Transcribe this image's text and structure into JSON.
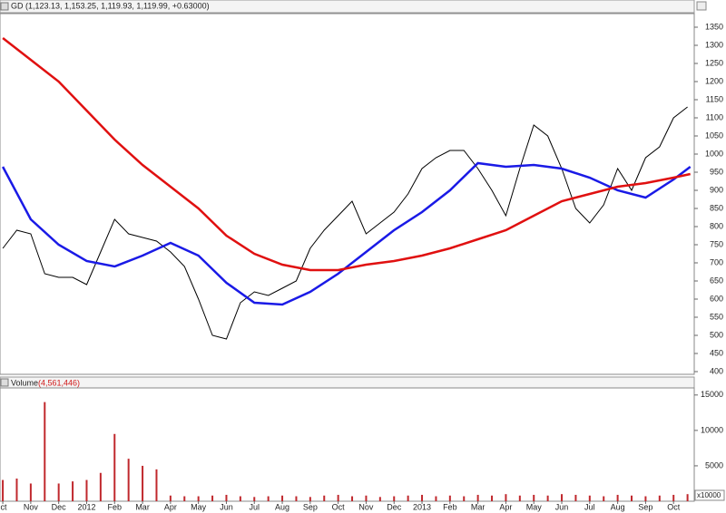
{
  "chart_data": [
    {
      "type": "line",
      "title": "GD (1,123.13, 1,153.25, 1,119.93, 1,119.99, +0.63000)",
      "xlim": [
        -0.1,
        24.74
      ],
      "ylim": [
        392.5,
        1387.5
      ],
      "yticks": [
        400,
        450,
        500,
        550,
        600,
        650,
        700,
        750,
        800,
        850,
        900,
        950,
        1000,
        1050,
        1100,
        1150,
        1200,
        1250,
        1300,
        1350
      ],
      "series": [
        {
          "color": "#000000",
          "x": [
            0,
            0.5,
            1,
            1.5,
            2,
            2.5,
            3,
            3.5,
            4,
            4.5,
            5,
            5.5,
            6,
            6.5,
            7,
            7.5,
            8,
            8.5,
            9,
            9.5,
            10,
            10.5,
            11,
            11.5,
            12,
            12.5,
            13,
            13.5,
            14,
            14.5,
            15,
            15.5,
            16,
            16.5,
            17,
            17.5,
            18,
            18.5,
            19,
            19.5,
            20,
            20.5,
            21,
            21.5,
            22,
            22.5,
            23,
            23.5,
            24,
            24.5
          ],
          "values": [
            740,
            790,
            780,
            670,
            660,
            660,
            640,
            730,
            820,
            780,
            770,
            760,
            730,
            690,
            600,
            500,
            490,
            590,
            620,
            610,
            630,
            650,
            740,
            790,
            830,
            870,
            780,
            810,
            840,
            890,
            960,
            990,
            1010,
            1010,
            960,
            900,
            830,
            960,
            1080,
            1050,
            960,
            850,
            810,
            860,
            960,
            900,
            990,
            1020,
            1100,
            1130
          ]
        },
        {
          "color": "#1a1ae6",
          "x": [
            0,
            1,
            2,
            3,
            4,
            5,
            6,
            7,
            8,
            9,
            10,
            11,
            12,
            13,
            14,
            15,
            16,
            17,
            18,
            19,
            20,
            21,
            22,
            23,
            24,
            24.6
          ],
          "values": [
            965,
            820,
            750,
            705,
            690,
            720,
            755,
            720,
            645,
            590,
            585,
            620,
            670,
            730,
            790,
            840,
            900,
            975,
            965,
            970,
            960,
            935,
            900,
            880,
            930,
            965
          ]
        },
        {
          "color": "#e01010",
          "x": [
            0,
            1,
            2,
            3,
            4,
            5,
            6,
            7,
            8,
            9,
            10,
            11,
            12,
            13,
            14,
            15,
            16,
            17,
            18,
            19,
            20,
            21,
            22,
            23,
            24,
            24.6
          ],
          "values": [
            1320,
            1260,
            1200,
            1120,
            1040,
            970,
            910,
            850,
            775,
            725,
            695,
            680,
            680,
            695,
            705,
            720,
            740,
            765,
            790,
            830,
            870,
            890,
            910,
            920,
            935,
            945
          ]
        }
      ]
    },
    {
      "type": "bar",
      "title": "Volume",
      "title_value": "(4,561,446)",
      "unit_label": "x10000",
      "color": "#c0282d",
      "xlim": [
        -0.1,
        24.74
      ],
      "xticks": [
        {
          "value": 0,
          "label": "ct"
        },
        {
          "value": 1,
          "label": "Nov"
        },
        {
          "value": 2,
          "label": "Dec"
        },
        {
          "value": 3,
          "label": "2012"
        },
        {
          "value": 4,
          "label": "Feb"
        },
        {
          "value": 5,
          "label": "Mar"
        },
        {
          "value": 6,
          "label": "Apr"
        },
        {
          "value": 7,
          "label": "May"
        },
        {
          "value": 8,
          "label": "Jun"
        },
        {
          "value": 9,
          "label": "Jul"
        },
        {
          "value": 10,
          "label": "Aug"
        },
        {
          "value": 11,
          "label": "Sep"
        },
        {
          "value": 12,
          "label": "Oct"
        },
        {
          "value": 13,
          "label": "Nov"
        },
        {
          "value": 14,
          "label": "Dec"
        },
        {
          "value": 15,
          "label": "2013"
        },
        {
          "value": 16,
          "label": "Feb"
        },
        {
          "value": 17,
          "label": "Mar"
        },
        {
          "value": 18,
          "label": "Apr"
        },
        {
          "value": 19,
          "label": "May"
        },
        {
          "value": 20,
          "label": "Jun"
        },
        {
          "value": 21,
          "label": "Jul"
        },
        {
          "value": 22,
          "label": "Aug"
        },
        {
          "value": 23,
          "label": "Sep"
        },
        {
          "value": 24,
          "label": "Oct"
        }
      ],
      "ylim": [
        0,
        16000
      ],
      "yticks": [
        5000,
        10000,
        15000
      ],
      "x": [
        0,
        0.5,
        1,
        1.5,
        2,
        2.5,
        3,
        3.5,
        4,
        4.5,
        5,
        5.5,
        6,
        6.5,
        7,
        7.5,
        8,
        8.5,
        9,
        9.5,
        10,
        10.5,
        11,
        11.5,
        12,
        12.5,
        13,
        13.5,
        14,
        14.5,
        15,
        15.5,
        16,
        16.5,
        17,
        17.5,
        18,
        18.5,
        19,
        19.5,
        20,
        20.5,
        21,
        21.5,
        22,
        22.5,
        23,
        23.5,
        24,
        24.5
      ],
      "values": [
        3000,
        3200,
        2500,
        14000,
        2500,
        2800,
        3000,
        4000,
        9500,
        6000,
        5000,
        4500,
        800,
        700,
        700,
        800,
        900,
        700,
        600,
        700,
        800,
        700,
        600,
        800,
        900,
        700,
        800,
        600,
        700,
        800,
        900,
        700,
        800,
        700,
        900,
        800,
        1000,
        800,
        900,
        800,
        1000,
        900,
        800,
        700,
        900,
        800,
        700,
        800,
        900,
        1000
      ]
    }
  ]
}
